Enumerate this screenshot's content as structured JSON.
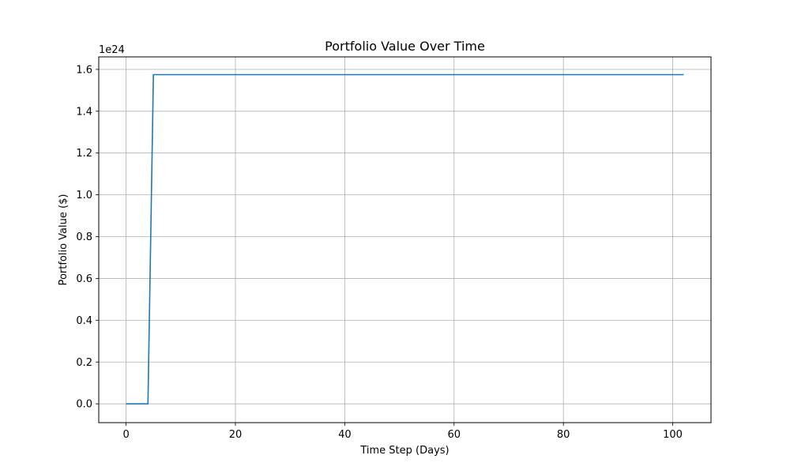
{
  "chart_data": {
    "type": "line",
    "title": "Portfolio Value Over Time",
    "xlabel": "Time Step (Days)",
    "ylabel": "Portfolio Value ($)",
    "y_offset_label": "1e24",
    "xlim": [
      -5,
      107
    ],
    "ylim": [
      -0.09,
      1.66
    ],
    "x_ticks": [
      0,
      20,
      40,
      60,
      80,
      100
    ],
    "x_tick_labels": [
      "0",
      "20",
      "40",
      "60",
      "80",
      "100"
    ],
    "y_ticks": [
      0.0,
      0.2,
      0.4,
      0.6,
      0.8,
      1.0,
      1.2,
      1.4,
      1.6
    ],
    "y_tick_labels": [
      "0.0",
      "0.2",
      "0.4",
      "0.6",
      "0.8",
      "1.0",
      "1.2",
      "1.4",
      "1.6"
    ],
    "grid": true,
    "series": [
      {
        "color": "#1f77b4",
        "x": [
          0,
          4,
          5,
          102
        ],
        "y": [
          0.0,
          0.0,
          1.575,
          1.575
        ]
      }
    ]
  }
}
